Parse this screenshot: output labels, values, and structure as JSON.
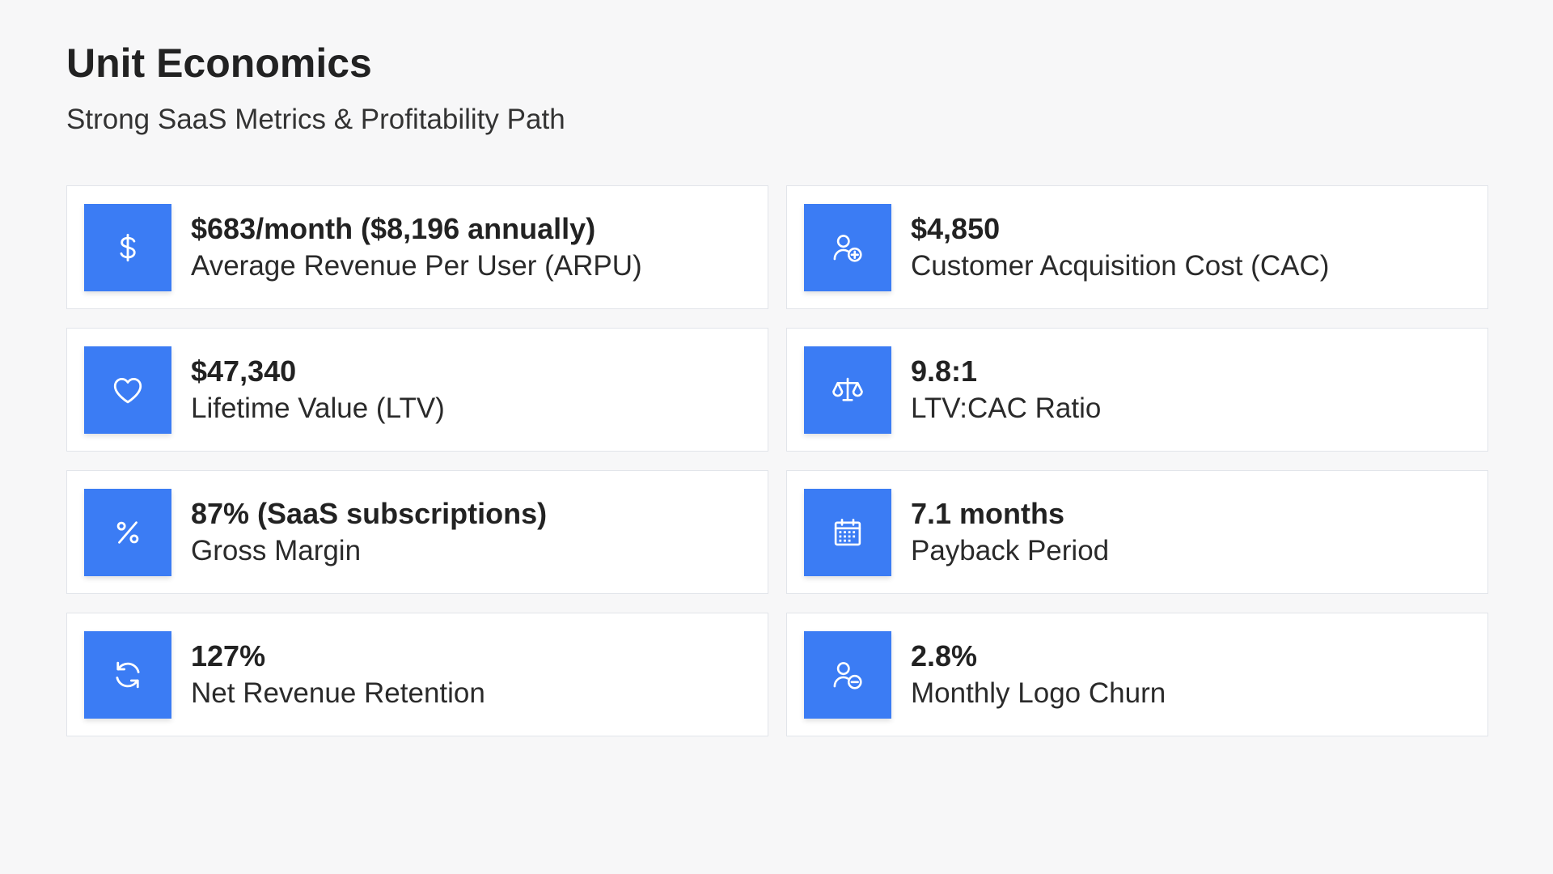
{
  "header": {
    "title": "Unit Economics",
    "subtitle": "Strong SaaS Metrics & Profitability Path"
  },
  "theme": {
    "accent": "#3b7cf4",
    "card_background": "#ffffff",
    "page_background": "#f7f7f8"
  },
  "metrics": [
    {
      "icon": "dollar-icon",
      "value": "$683/month ($8,196 annually)",
      "label": "Average Revenue Per User (ARPU)"
    },
    {
      "icon": "user-plus-icon",
      "value": "$4,850",
      "label": "Customer Acquisition Cost (CAC)"
    },
    {
      "icon": "heart-icon",
      "value": "$47,340",
      "label": "Lifetime Value (LTV)"
    },
    {
      "icon": "scale-icon",
      "value": "9.8:1",
      "label": "LTV:CAC Ratio"
    },
    {
      "icon": "percent-icon",
      "value": "87% (SaaS subscriptions)",
      "label": "Gross Margin"
    },
    {
      "icon": "calendar-icon",
      "value": "7.1 months",
      "label": "Payback Period"
    },
    {
      "icon": "refresh-icon",
      "value": "127%",
      "label": "Net Revenue Retention"
    },
    {
      "icon": "user-minus-icon",
      "value": "2.8%",
      "label": "Monthly Logo Churn"
    }
  ]
}
